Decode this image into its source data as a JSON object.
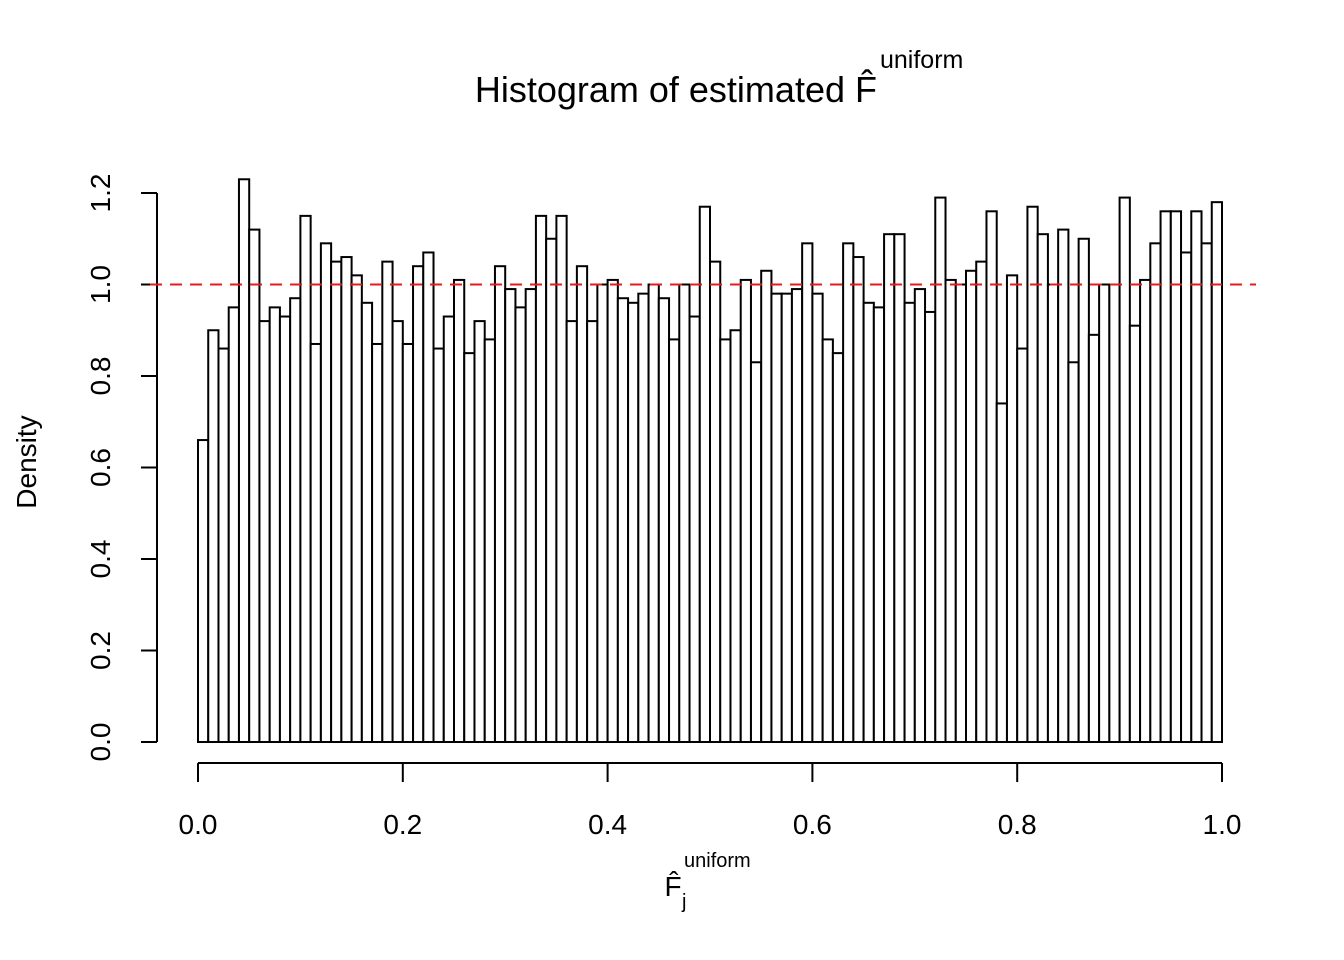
{
  "chart_data": {
    "type": "histogram",
    "title": {
      "text": "Histogram of estimated",
      "symbol": "F̂",
      "superscript": "uniform"
    },
    "xlabel": {
      "symbol": "F̂",
      "subscript": "j",
      "superscript": "uniform"
    },
    "ylabel": "Density",
    "bins": [
      0,
      0.01,
      0.02,
      0.03,
      0.04,
      0.05,
      0.06,
      0.07,
      0.08,
      0.09,
      0.1,
      0.11,
      0.12,
      0.13,
      0.14,
      0.15,
      0.16,
      0.17,
      0.18,
      0.19,
      0.2,
      0.21,
      0.22,
      0.23,
      0.24,
      0.25,
      0.26,
      0.27,
      0.28,
      0.29,
      0.3,
      0.31,
      0.32,
      0.33,
      0.34,
      0.35,
      0.36,
      0.37,
      0.38,
      0.39,
      0.4,
      0.41,
      0.42,
      0.43,
      0.44,
      0.45,
      0.46,
      0.47,
      0.48,
      0.49,
      0.5,
      0.51,
      0.52,
      0.53,
      0.54,
      0.55,
      0.56,
      0.57,
      0.58,
      0.59,
      0.6,
      0.61,
      0.62,
      0.63,
      0.64,
      0.65,
      0.66,
      0.67,
      0.68,
      0.69,
      0.7,
      0.71,
      0.72,
      0.73,
      0.74,
      0.75,
      0.76,
      0.77,
      0.78,
      0.79,
      0.8,
      0.81,
      0.82,
      0.83,
      0.84,
      0.85,
      0.86,
      0.87,
      0.88,
      0.89,
      0.9,
      0.91,
      0.92,
      0.93,
      0.94,
      0.95,
      0.96,
      0.97,
      0.98,
      0.99,
      1
    ],
    "values": [
      0.66,
      0.9,
      0.86,
      0.95,
      1.23,
      1.12,
      0.92,
      0.95,
      0.93,
      0.97,
      1.15,
      0.87,
      1.09,
      1.05,
      1.06,
      1.02,
      0.96,
      0.87,
      1.05,
      0.92,
      0.87,
      1.04,
      1.07,
      0.86,
      0.93,
      1.01,
      0.85,
      0.92,
      0.88,
      1.04,
      0.99,
      0.95,
      0.99,
      1.15,
      1.1,
      1.15,
      0.92,
      1.04,
      0.92,
      1.0,
      1.01,
      0.97,
      0.96,
      0.98,
      1.0,
      0.97,
      0.88,
      1.0,
      0.93,
      1.17,
      1.05,
      0.88,
      0.9,
      1.01,
      0.83,
      1.03,
      0.98,
      0.98,
      0.99,
      1.09,
      0.98,
      0.88,
      0.85,
      1.09,
      1.06,
      0.96,
      0.95,
      1.11,
      1.11,
      0.96,
      0.99,
      0.94,
      1.19,
      1.01,
      1.0,
      1.03,
      1.05,
      1.16,
      0.74,
      1.02,
      0.86,
      1.17,
      1.11,
      1.0,
      1.12,
      0.83,
      1.1,
      0.89,
      1.0,
      1.0,
      1.19,
      0.91,
      1.01,
      1.09,
      1.16,
      1.16,
      1.07,
      1.16,
      1.09,
      1.18
    ],
    "color": "#ffffff",
    "edgecolor": "#000000",
    "hline": {
      "value": 1,
      "color": "#e41a1c",
      "dashed": true
    },
    "xlim": [
      0,
      1
    ],
    "ylim": [
      0,
      1.2
    ],
    "xticks": [
      {
        "value": 0,
        "label": "0.0"
      },
      0.2,
      0.4,
      0.6,
      0.8,
      {
        "value": 1,
        "label": "1.0"
      }
    ],
    "yticks": [
      {
        "value": 0,
        "label": "0.0"
      },
      0.2,
      0.4,
      0.6,
      0.8,
      {
        "value": 1,
        "label": "1.0"
      },
      1.2
    ]
  }
}
